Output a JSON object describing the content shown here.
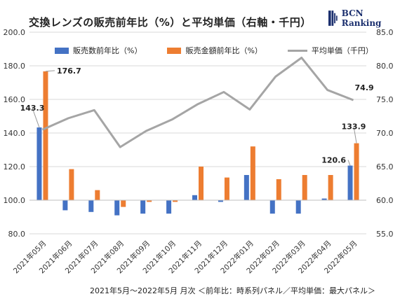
{
  "title": "交換レンズの販売前年比（%）と平均単価（右軸・千円）",
  "logo": {
    "text": "BCN Ranking"
  },
  "footer": "2021年5月〜2022年5月 月次 ＜前年比：時系列パネル／平均単価：最大パネル＞",
  "legend": [
    {
      "label": "販売数前年比（%）",
      "color": "#4472c4",
      "kind": "bar"
    },
    {
      "label": "販売金額前年比（%）",
      "color": "#ed7d31",
      "kind": "bar"
    },
    {
      "label": "平均単価（千円）",
      "color": "#a5a5a5",
      "kind": "line"
    }
  ],
  "chart_data": {
    "type": "bar",
    "categories": [
      "2021年05月",
      "2021年06月",
      "2021年07月",
      "2021年08月",
      "2021年09月",
      "2021年10月",
      "2021年11月",
      "2021年12月",
      "2022年01月",
      "2022年02月",
      "2022年03月",
      "2022年04月",
      "2022年05月"
    ],
    "series": [
      {
        "name": "販売数前年比（%）",
        "type": "bar",
        "axis": "left",
        "color": "#4472c4",
        "values": [
          143.3,
          94,
          93,
          91,
          92,
          92,
          103,
          99,
          115,
          92,
          92,
          101,
          120.6
        ]
      },
      {
        "name": "販売金額前年比（%）",
        "type": "bar",
        "axis": "left",
        "color": "#ed7d31",
        "values": [
          176.7,
          118.5,
          106,
          96,
          99,
          99,
          120,
          113.5,
          132,
          112.5,
          115,
          115,
          133.9
        ]
      },
      {
        "name": "平均単価（千円）",
        "type": "line",
        "axis": "right",
        "color": "#a5a5a5",
        "values": [
          70.5,
          72.2,
          73.4,
          67.9,
          70.3,
          72,
          74.3,
          76.1,
          73.5,
          78.4,
          81.2,
          76.4,
          74.9
        ]
      }
    ],
    "data_labels": [
      {
        "series": 1,
        "index": 0,
        "text": "176.7"
      },
      {
        "series": 0,
        "index": 0,
        "text": "143.3"
      },
      {
        "series": 0,
        "index": 12,
        "text": "120.6"
      },
      {
        "series": 1,
        "index": 12,
        "text": "133.9"
      },
      {
        "series": 2,
        "index": 12,
        "text": "74.9"
      }
    ],
    "ylim": [
      80,
      200
    ],
    "yticks": [
      "80.0",
      "100.0",
      "120.0",
      "140.0",
      "160.0",
      "180.0",
      "200.0"
    ],
    "y2lim": [
      55,
      85
    ],
    "y2ticks": [
      "55.0",
      "60.0",
      "65.0",
      "70.0",
      "75.0",
      "80.0",
      "85.0"
    ],
    "baseline": 100,
    "grid": true,
    "legend_position": "top"
  }
}
